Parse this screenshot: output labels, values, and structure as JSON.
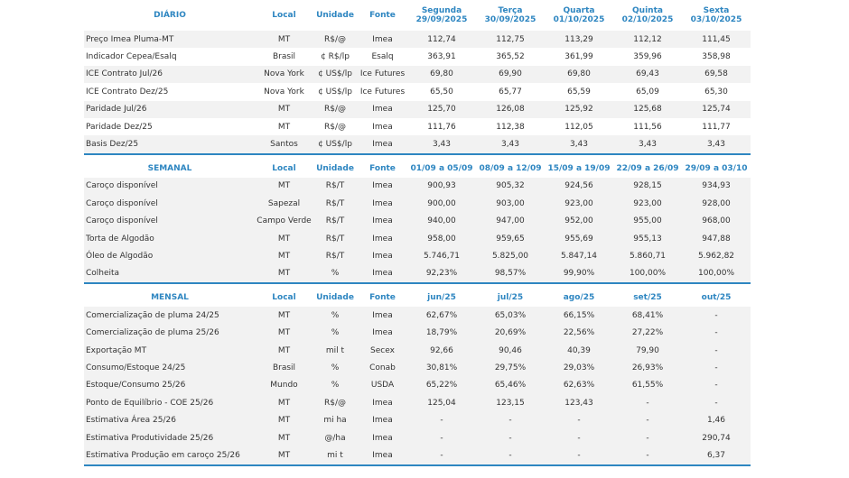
{
  "sections": [
    {
      "title": "DIÁRIO",
      "col_labels": {
        "local": "Local",
        "unit": "Unidade",
        "source": "Fonte"
      },
      "periods_top": [
        "Segunda",
        "Terça",
        "Quarta",
        "Quinta",
        "Sexta"
      ],
      "periods": [
        "29/09/2025",
        "30/09/2025",
        "01/10/2025",
        "02/10/2025",
        "03/10/2025"
      ],
      "rows": [
        {
          "label": "Preço Imea Pluma-MT",
          "local": "MT",
          "unit": "R$/@",
          "source": "Imea",
          "values": [
            "112,74",
            "112,75",
            "113,29",
            "112,12",
            "111,45"
          ]
        },
        {
          "label": "Indicador Cepea/Esalq",
          "local": "Brasil",
          "unit": "¢ R$/lp",
          "source": "Esalq",
          "values": [
            "363,91",
            "365,52",
            "361,99",
            "359,96",
            "358,98"
          ]
        },
        {
          "label": "ICE Contrato Jul/26",
          "local": "Nova York",
          "unit": "¢ US$/lp",
          "source": "Ice Futures",
          "values": [
            "69,80",
            "69,90",
            "69,80",
            "69,43",
            "69,58"
          ]
        },
        {
          "label": "ICE Contrato Dez/25",
          "local": "Nova York",
          "unit": "¢ US$/lp",
          "source": "Ice Futures",
          "values": [
            "65,50",
            "65,77",
            "65,59",
            "65,09",
            "65,30"
          ]
        },
        {
          "label": "Paridade Jul/26",
          "local": "MT",
          "unit": "R$/@",
          "source": "Imea",
          "values": [
            "125,70",
            "126,08",
            "125,92",
            "125,68",
            "125,74"
          ]
        },
        {
          "label": "Paridade Dez/25",
          "local": "MT",
          "unit": "R$/@",
          "source": "Imea",
          "values": [
            "111,76",
            "112,38",
            "112,05",
            "111,56",
            "111,77"
          ]
        },
        {
          "label": "Basis Dez/25",
          "local": "Santos",
          "unit": "¢ US$/lp",
          "source": "Imea",
          "values": [
            "3,43",
            "3,43",
            "3,43",
            "3,43",
            "3,43"
          ]
        }
      ]
    },
    {
      "title": "SEMANAL",
      "col_labels": {
        "local": "Local",
        "unit": "Unidade",
        "source": "Fonte"
      },
      "periods": [
        "01/09 a 05/09",
        "08/09 a 12/09",
        "15/09 a 19/09",
        "22/09 a 26/09",
        "29/09 a 03/10"
      ],
      "rows": [
        {
          "label": "Caroço disponível",
          "local": "MT",
          "unit": "R$/T",
          "source": "Imea",
          "values": [
            "900,93",
            "905,32",
            "924,56",
            "928,15",
            "934,93"
          ]
        },
        {
          "label": "Caroço disponível",
          "local": "Sapezal",
          "unit": "R$/T",
          "source": "Imea",
          "values": [
            "900,00",
            "903,00",
            "923,00",
            "923,00",
            "928,00"
          ]
        },
        {
          "label": "Caroço disponível",
          "local": "Campo Verde",
          "unit": "R$/T",
          "source": "Imea",
          "values": [
            "940,00",
            "947,00",
            "952,00",
            "955,00",
            "968,00"
          ]
        },
        {
          "label": "Torta de Algodão",
          "local": "MT",
          "unit": "R$/T",
          "source": "Imea",
          "values": [
            "958,00",
            "959,65",
            "955,69",
            "955,13",
            "947,88"
          ]
        },
        {
          "label": "Óleo de Algodão",
          "local": "MT",
          "unit": "R$/T",
          "source": "Imea",
          "values": [
            "5.746,71",
            "5.825,00",
            "5.847,14",
            "5.860,71",
            "5.962,82"
          ]
        },
        {
          "label": "Colheita",
          "local": "MT",
          "unit": "%",
          "source": "Imea",
          "values": [
            "92,23%",
            "98,57%",
            "99,90%",
            "100,00%",
            "100,00%"
          ]
        }
      ]
    },
    {
      "title": "MENSAL",
      "col_labels": {
        "local": "Local",
        "unit": "Unidade",
        "source": "Fonte"
      },
      "periods": [
        "jun/25",
        "jul/25",
        "ago/25",
        "set/25",
        "out/25"
      ],
      "rows": [
        {
          "label": "Comercialização de pluma 24/25",
          "local": "MT",
          "unit": "%",
          "source": "Imea",
          "values": [
            "62,67%",
            "65,03%",
            "66,15%",
            "68,41%",
            "-"
          ]
        },
        {
          "label": "Comercialização de pluma 25/26",
          "local": "MT",
          "unit": "%",
          "source": "Imea",
          "values": [
            "18,79%",
            "20,69%",
            "22,56%",
            "27,22%",
            "-"
          ]
        },
        {
          "label": "Exportação MT",
          "local": "MT",
          "unit": "mil t",
          "source": "Secex",
          "values": [
            "92,66",
            "90,46",
            "40,39",
            "79,90",
            "-"
          ]
        },
        {
          "label": "Consumo/Estoque 24/25",
          "local": "Brasil",
          "unit": "%",
          "source": "Conab",
          "values": [
            "30,81%",
            "29,75%",
            "29,03%",
            "26,93%",
            "-"
          ]
        },
        {
          "label": "Estoque/Consumo 25/26",
          "local": "Mundo",
          "unit": "%",
          "source": "USDA",
          "values": [
            "65,22%",
            "65,46%",
            "62,63%",
            "61,55%",
            "-"
          ]
        },
        {
          "label": "Ponto de Equilíbrio - COE 25/26",
          "local": "MT",
          "unit": "R$/@",
          "source": "Imea",
          "values": [
            "125,04",
            "123,15",
            "123,43",
            "-",
            "-"
          ]
        },
        {
          "label": "Estimativa Área 25/26",
          "local": "MT",
          "unit": "mi ha",
          "source": "Imea",
          "values": [
            "-",
            "-",
            "-",
            "-",
            "1,46"
          ]
        },
        {
          "label": "Estimativa Produtividade 25/26",
          "local": "MT",
          "unit": "@/ha",
          "source": "Imea",
          "values": [
            "-",
            "-",
            "-",
            "-",
            "290,74"
          ]
        },
        {
          "label": "Estimativa Produção em caroço 25/26",
          "local": "MT",
          "unit": "mi t",
          "source": "Imea",
          "values": [
            "-",
            "-",
            "-",
            "-",
            "6,37"
          ]
        }
      ]
    }
  ]
}
